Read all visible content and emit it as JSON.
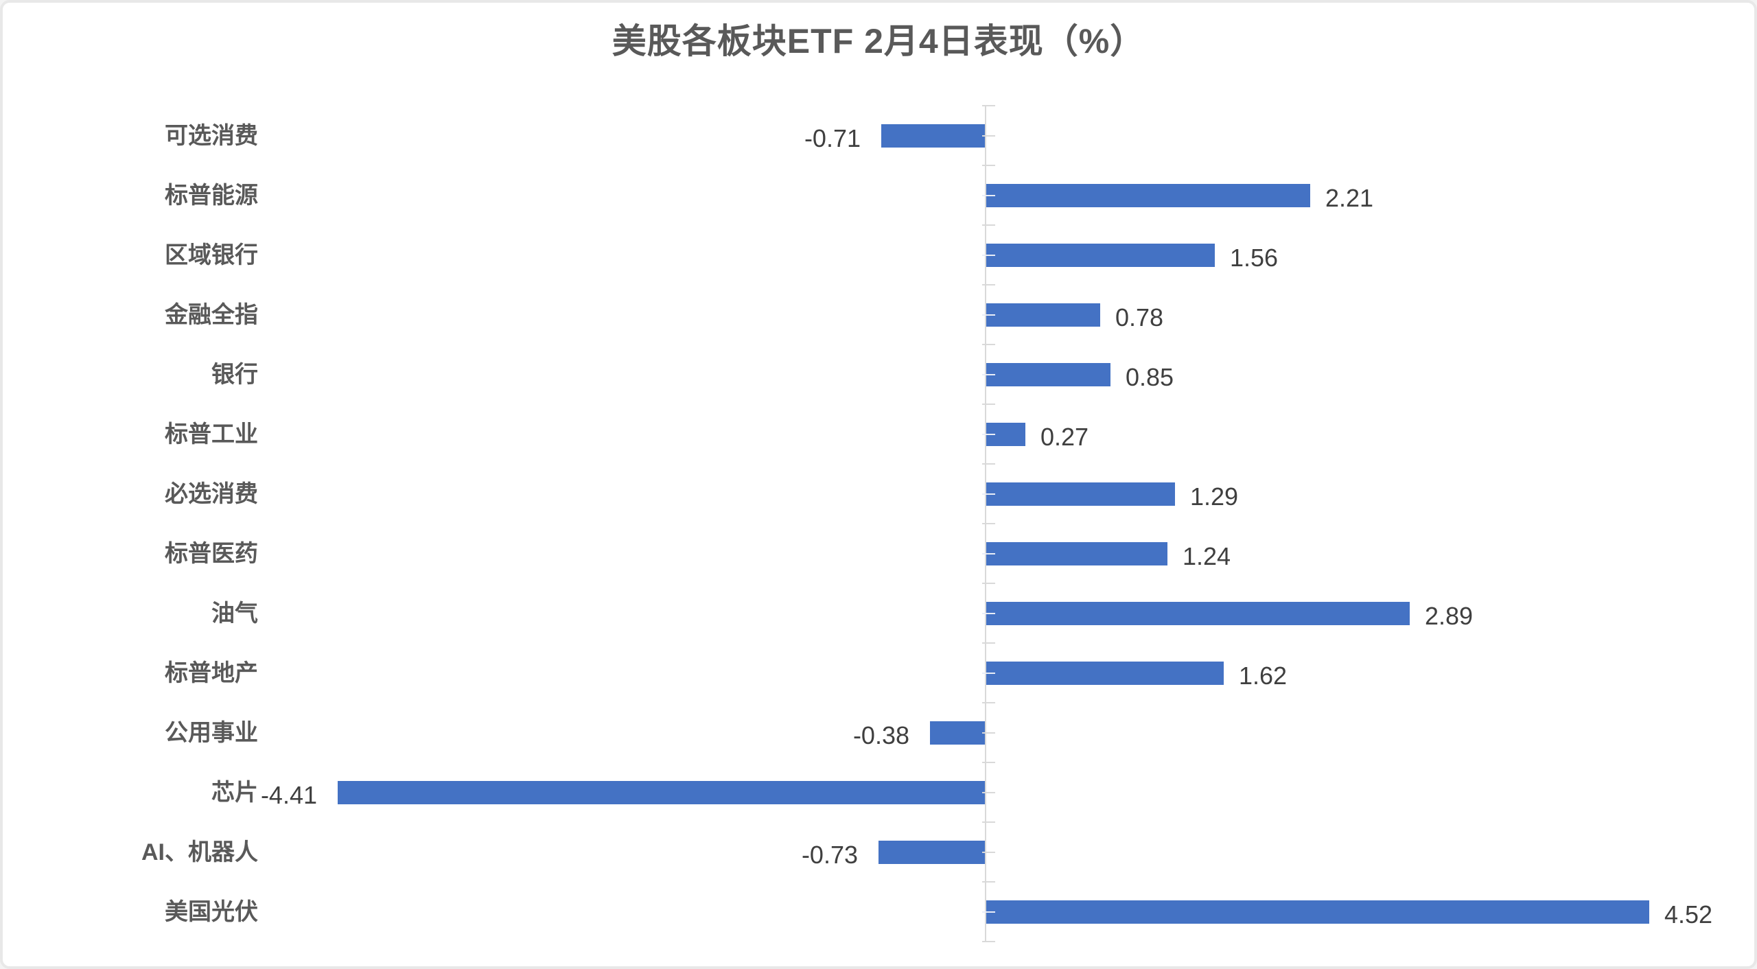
{
  "page": {
    "background_color": "#ffffff",
    "border_color": "#e8e8e8"
  },
  "chart_data": {
    "type": "bar",
    "orientation": "horizontal",
    "title": "美股各板块ETF 2月4日表现（%）",
    "xlabel": "",
    "ylabel": "",
    "xlim": [
      -5,
      5
    ],
    "grid": false,
    "legend": false,
    "categories": [
      "可选消费",
      "标普能源",
      "区域银行",
      "金融全指",
      "银行",
      "标普工业",
      "必选消费",
      "标普医药",
      "油气",
      "标普地产",
      "公用事业",
      "芯片",
      "AI、机器人",
      "美国光伏"
    ],
    "values": [
      -0.71,
      2.21,
      1.56,
      0.78,
      0.85,
      0.27,
      1.29,
      1.24,
      2.89,
      1.62,
      -0.38,
      -4.41,
      -0.73,
      4.52
    ],
    "value_labels": [
      "-0.71",
      "2.21",
      "1.56",
      "0.78",
      "0.85",
      "0.27",
      "1.29",
      "1.24",
      "2.89",
      "1.62",
      "-0.38",
      "-4.41",
      "-0.73",
      "4.52"
    ],
    "colors": {
      "bar": "#4472C4",
      "axis": "#D9D9D9",
      "tick_over_bar": "#E9EDF7",
      "title_text": "#595959",
      "category_text": "#595959",
      "value_text": "#3F3F3F"
    }
  }
}
